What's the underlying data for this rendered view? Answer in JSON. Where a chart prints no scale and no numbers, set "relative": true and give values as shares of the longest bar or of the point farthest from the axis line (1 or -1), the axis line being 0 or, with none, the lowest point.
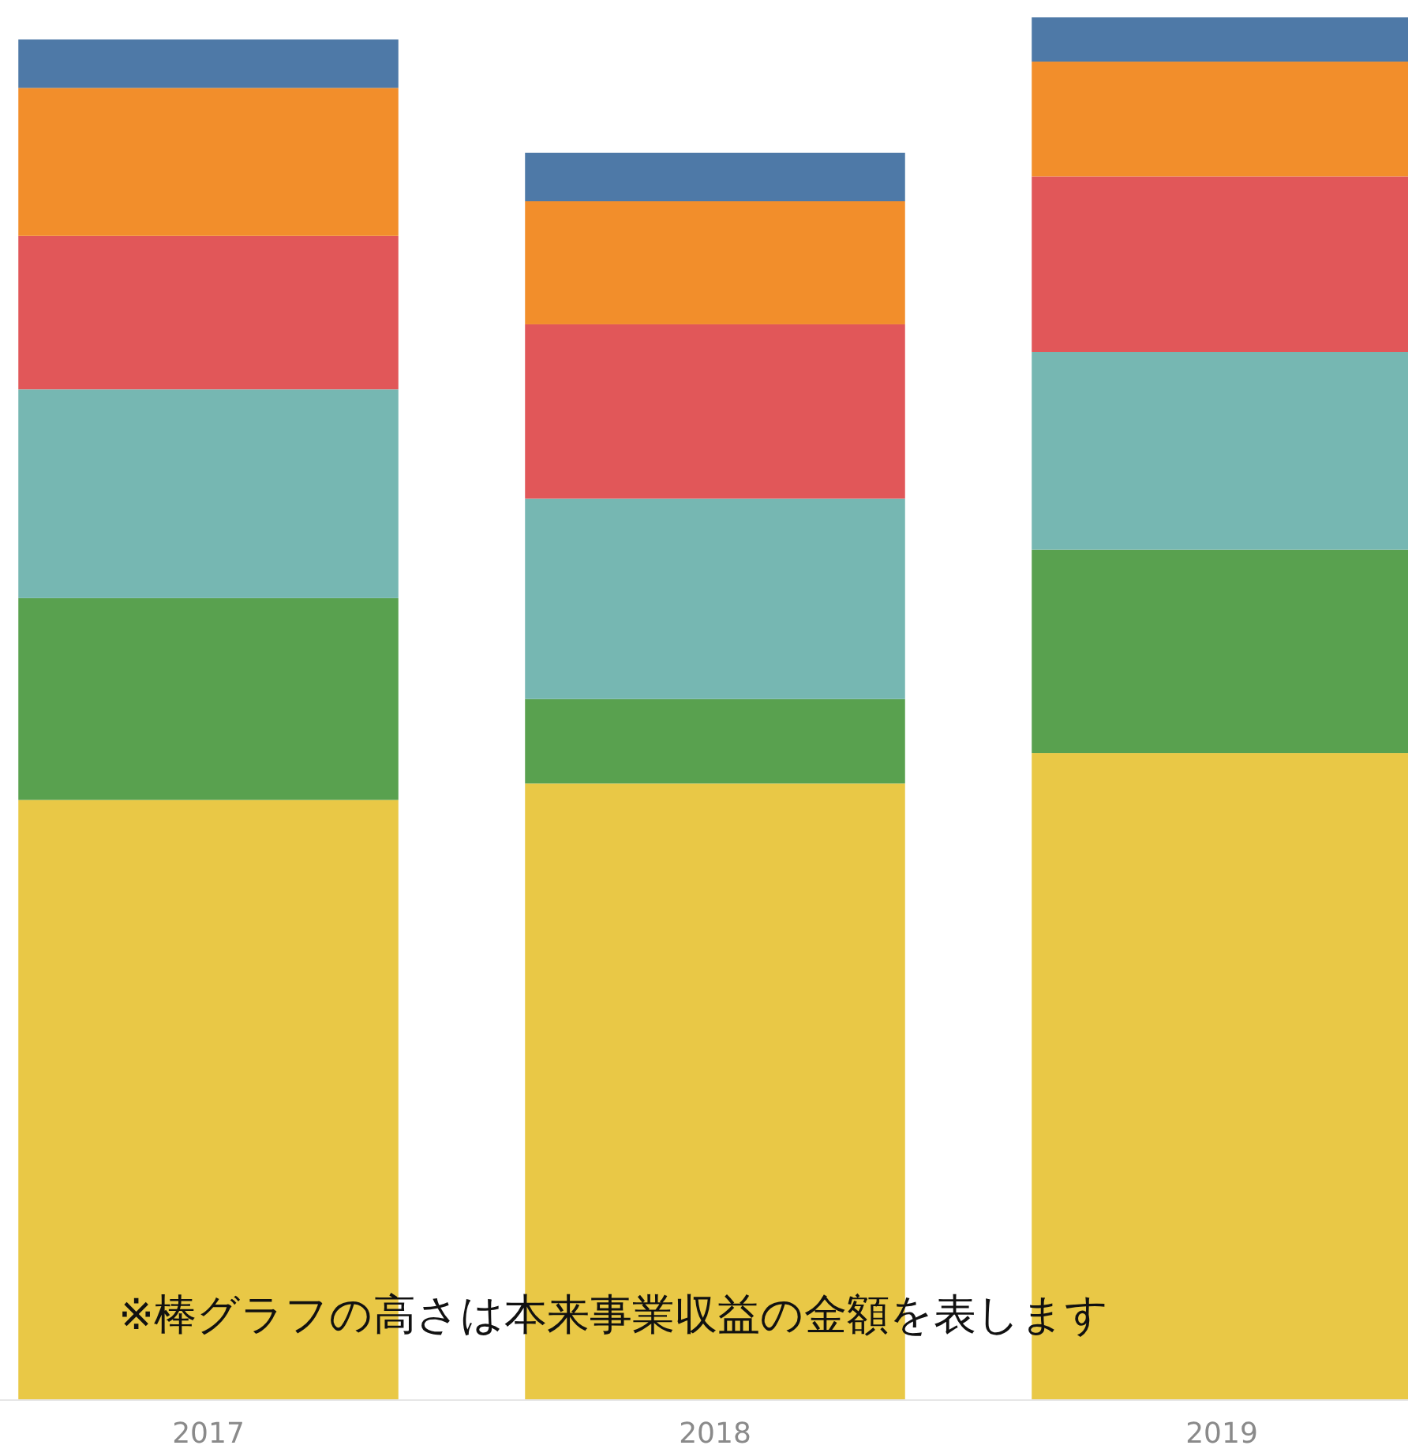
{
  "chart_data": {
    "type": "bar",
    "stacked": true,
    "relative": true,
    "categories": [
      "2017",
      "2018",
      "2019"
    ],
    "series": [
      {
        "color": "#e9c846",
        "values": [
          0.434,
          0.446,
          0.468
        ]
      },
      {
        "color": "#59a14f",
        "values": [
          0.146,
          0.061,
          0.147
        ]
      },
      {
        "color": "#76b7b2",
        "values": [
          0.151,
          0.145,
          0.143
        ]
      },
      {
        "color": "#e15759",
        "values": [
          0.111,
          0.126,
          0.127
        ]
      },
      {
        "color": "#f28e2b",
        "values": [
          0.107,
          0.089,
          0.083
        ]
      },
      {
        "color": "#4e79a7",
        "values": [
          0.035,
          0.035,
          0.032
        ]
      }
    ],
    "annotations": [
      "※棒グラフの高さは本来事業収益の金額を表します"
    ]
  }
}
